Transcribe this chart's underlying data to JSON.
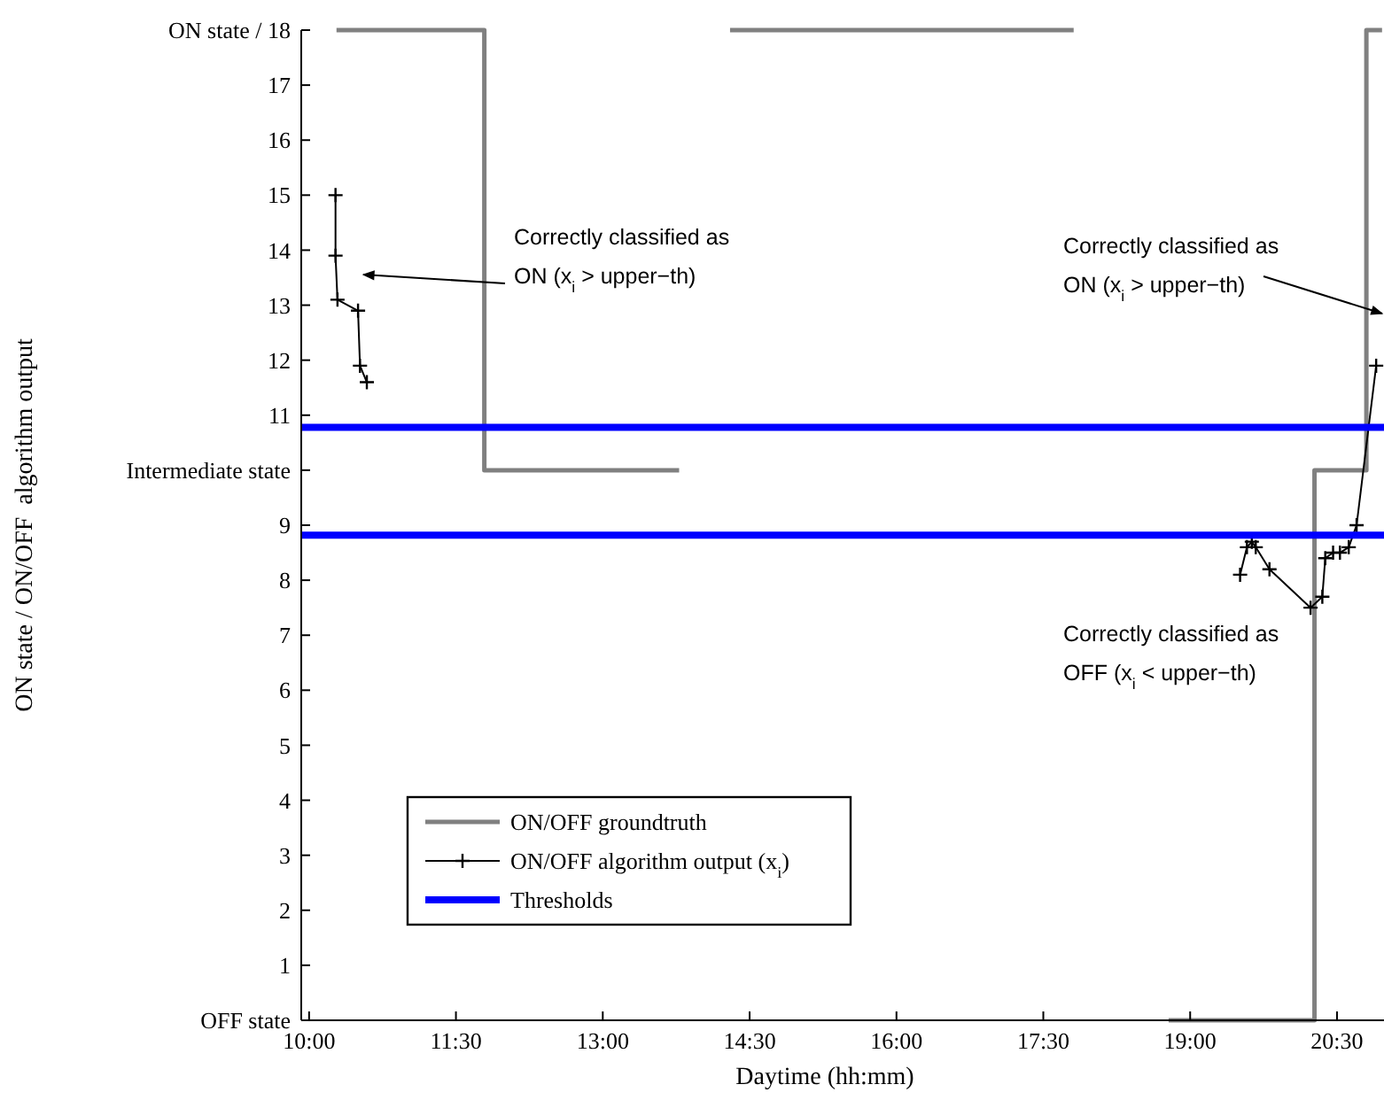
{
  "chart_data": {
    "type": "line",
    "xlabel": "Daytime (hh:mm)",
    "ylabel": "ON state / ON/OFF  algorithm output",
    "xlim": [
      9.92,
      20.98
    ],
    "xticks": [
      {
        "value": 10,
        "label": "10:00"
      },
      {
        "value": 11.5,
        "label": "11:30"
      },
      {
        "value": 13,
        "label": "13:00"
      },
      {
        "value": 14.5,
        "label": "14:30"
      },
      {
        "value": 16,
        "label": "16:00"
      },
      {
        "value": 17.5,
        "label": "17:30"
      },
      {
        "value": 19,
        "label": "19:00"
      },
      {
        "value": 20.5,
        "label": "20:30"
      }
    ],
    "ylim": [
      0,
      18
    ],
    "yticks": [
      {
        "value": 0,
        "label": "OFF state"
      },
      1,
      2,
      3,
      4,
      5,
      6,
      7,
      8,
      9,
      {
        "value": 10,
        "label": "Intermediate state"
      },
      11,
      12,
      13,
      14,
      15,
      16,
      17,
      {
        "value": 18,
        "label": "ON state / 18"
      }
    ],
    "grid": false,
    "legend": "bottom left",
    "series": [
      {
        "name": "ON/OFF groundtruth",
        "color": "#808080",
        "marker": "none",
        "x": [
          10.28,
          11.79,
          11.79,
          13.78,
          14.0,
          14.3,
          17.81,
          18.3,
          18.78,
          20.27,
          20.27,
          20.8,
          20.8,
          20.96
        ],
        "values": [
          18,
          18,
          10,
          10,
          null,
          18,
          18,
          null,
          0,
          0,
          10,
          10,
          18,
          18
        ]
      },
      {
        "name": "ON/OFF algorithm output (x$_{i}$)",
        "color": "#000000",
        "marker": "cross",
        "x": [
          10.27,
          10.27,
          10.29,
          10.5,
          10.52,
          10.59,
          10.7,
          19.51,
          19.58,
          19.63,
          19.67,
          19.81,
          20.23,
          20.35,
          20.38,
          20.46,
          20.53,
          20.62,
          20.7,
          20.9
        ],
        "values": [
          15.0,
          13.9,
          13.1,
          12.9,
          11.9,
          11.6,
          null,
          8.1,
          8.6,
          8.7,
          8.6,
          8.2,
          7.5,
          7.7,
          8.4,
          8.5,
          8.5,
          8.6,
          9.0,
          11.9
        ]
      },
      {
        "name": "Thresholds",
        "color": "#0000ff",
        "marker": "none",
        "x": [
          9.92,
          20.98
        ],
        "values": [
          10.78,
          10.78
        ]
      },
      {
        "color": "#0000ff",
        "marker": "none",
        "x": [
          9.92,
          20.98
        ],
        "values": [
          8.82,
          8.82
        ]
      }
    ],
    "annotations": [
      "Correctly classified as\nON (x$_{i}$ > upper−th)",
      "Correctly classified as\nON (x$_{i}$ > upper−th)",
      "Correctly classified as\nOFF (x$_{i}$ < upper−th)"
    ]
  }
}
